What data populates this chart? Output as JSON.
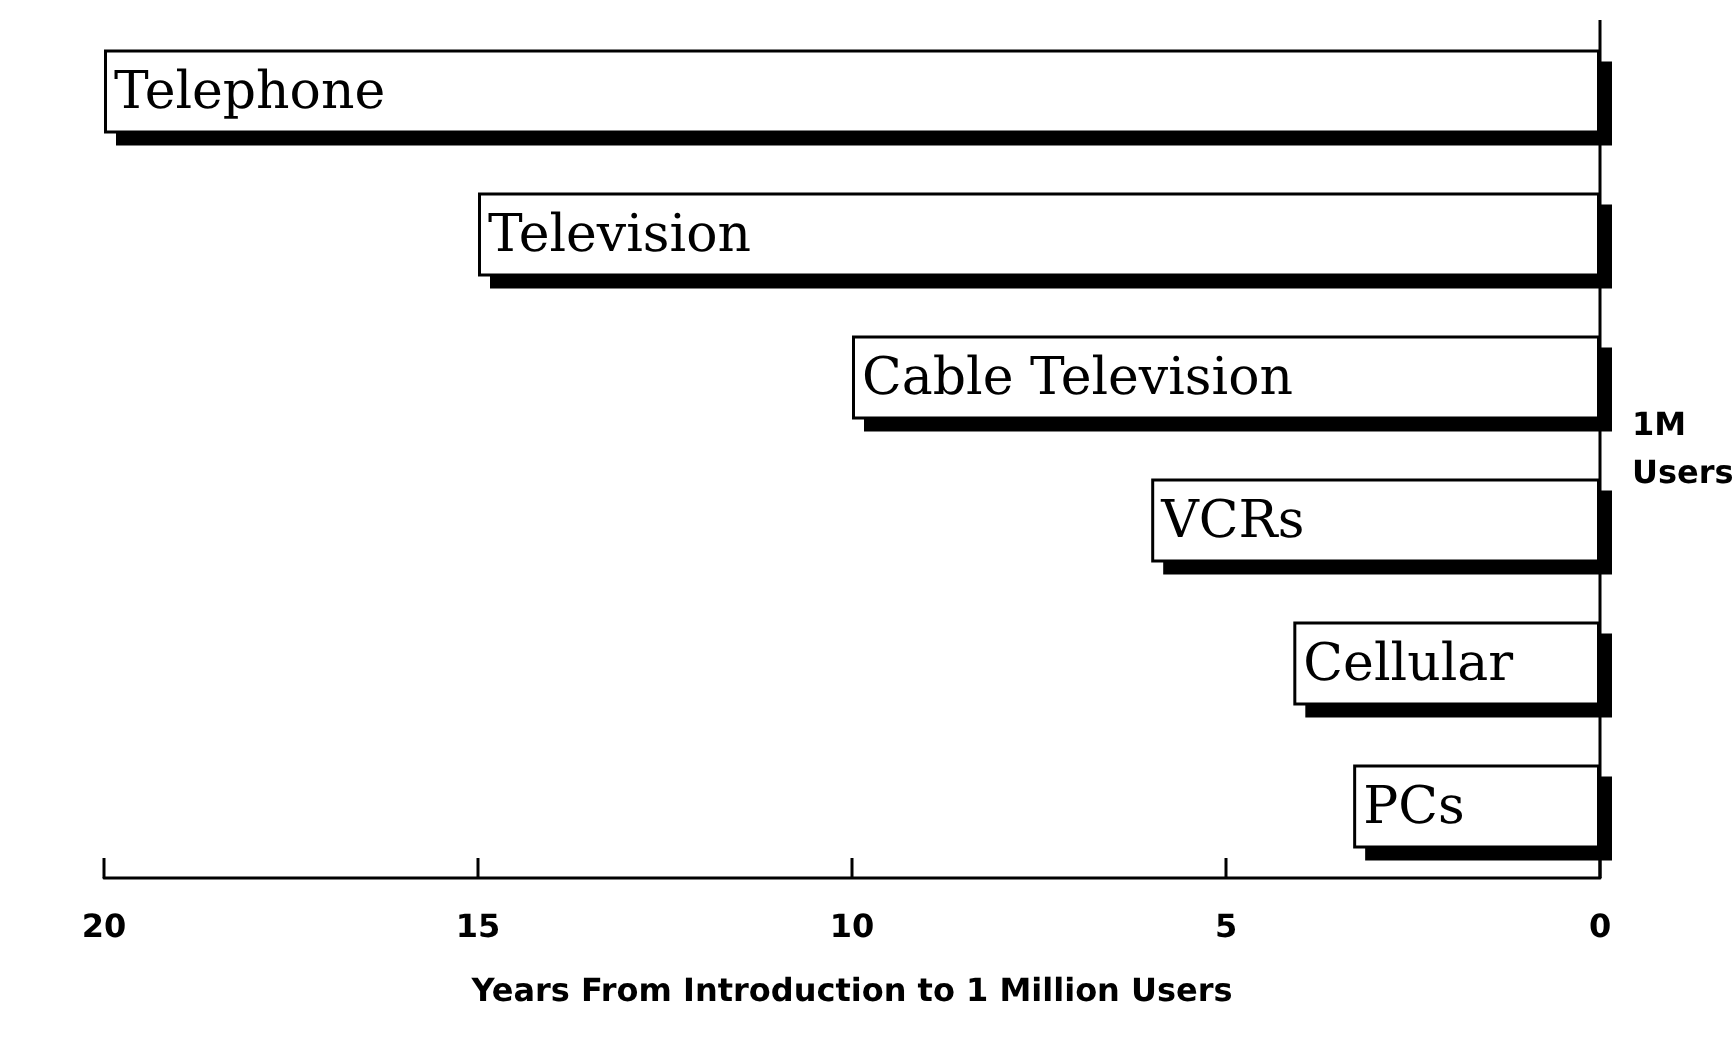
{
  "chart_data": {
    "type": "bar",
    "orientation": "horizontal",
    "xlabel": "Years From Introduction to 1 Million Users",
    "categories": [
      "Telephone",
      "Television",
      "Cable Television",
      "VCRs",
      "Cellular",
      "PCs"
    ],
    "values": [
      20,
      15,
      10,
      6,
      4.1,
      3.3
    ],
    "color": "#ffffff",
    "xlim": [
      20,
      0
    ],
    "xticks": [
      20,
      15,
      10,
      5,
      0
    ],
    "grid": false,
    "ref_lines": [
      {
        "axis": "x",
        "value": 0,
        "label": "1M Users"
      }
    ]
  }
}
